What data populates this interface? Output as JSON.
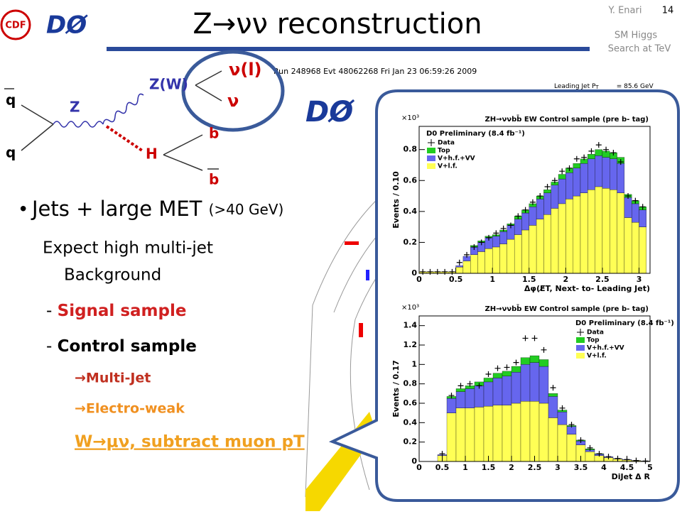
{
  "header": {
    "title": "Z→νν reconstruction",
    "author": "Y. Enari",
    "page": "14",
    "event": "SM Higgs",
    "event_line2": "Search at TeV",
    "logo_cdf": "CDF",
    "logo_d0": "DØ"
  },
  "diagram": {
    "qbar": "q",
    "q": "q",
    "z": "Z",
    "zw": "Z(W)",
    "nul": "ν(l)",
    "nu": "ν",
    "h": "H",
    "b": "b",
    "bbar": "b"
  },
  "event_display": {
    "run": "Run 248968 Evt 48062268 Fri Jan 23 06:59:26 2009",
    "jet": "Leading Jet P",
    "jet_sub": "T",
    "jet_value": "= 85.6 GeV",
    "logo": "DØ"
  },
  "bullets": {
    "main": "Jets + large MET",
    "main_note": "(>40 GeV)",
    "expect": "Expect high multi-jet",
    "expect2": "Background",
    "dash1": "- ",
    "signal": "Signal sample",
    "dash2": "- ",
    "control": "Control sample",
    "multijet": "→Multi-Jet",
    "ew": "→Electro-weak",
    "wmunu": "W→μν, subtract muon pT"
  },
  "chart_data": [
    {
      "type": "histogram",
      "title": "ZH→ννbb̄ EW Control sample (pre b- tag)",
      "subtitle": "D0 Preliminary (8.4 fb⁻¹)",
      "exponent": "×10³",
      "ylabel": "Events / 0.10",
      "xlabel": "Δφ(E̸T, Next- to- Leading Jet)",
      "legend": "upper left",
      "bins": [
        0,
        0.1,
        0.2,
        0.3,
        0.4,
        0.5,
        0.6,
        0.7,
        0.8,
        0.9,
        1.0,
        1.1,
        1.2,
        1.3,
        1.4,
        1.5,
        1.6,
        1.7,
        1.8,
        1.9,
        2.0,
        2.1,
        2.2,
        2.3,
        2.4,
        2.5,
        2.6,
        2.7,
        2.8,
        2.9,
        3.0,
        3.1
      ],
      "series": [
        {
          "name": "V+l.f.",
          "color": "#ffff55",
          "values": [
            0.01,
            0.01,
            0.01,
            0.01,
            0.01,
            0.04,
            0.08,
            0.12,
            0.14,
            0.16,
            0.17,
            0.19,
            0.22,
            0.25,
            0.28,
            0.31,
            0.35,
            0.38,
            0.42,
            0.45,
            0.48,
            0.5,
            0.52,
            0.54,
            0.56,
            0.55,
            0.54,
            0.52,
            0.36,
            0.33,
            0.3
          ]
        },
        {
          "name": "V+h.f.+VV",
          "color": "#6666ee",
          "values": [
            0,
            0,
            0,
            0,
            0,
            0.01,
            0.03,
            0.05,
            0.06,
            0.07,
            0.07,
            0.08,
            0.09,
            0.1,
            0.11,
            0.12,
            0.13,
            0.14,
            0.15,
            0.16,
            0.17,
            0.18,
            0.19,
            0.2,
            0.2,
            0.2,
            0.2,
            0.19,
            0.13,
            0.12,
            0.11
          ]
        },
        {
          "name": "Top",
          "color": "#22cc22",
          "values": [
            0,
            0,
            0,
            0,
            0,
            0,
            0,
            0.01,
            0.01,
            0.01,
            0.01,
            0.01,
            0.01,
            0.02,
            0.02,
            0.02,
            0.02,
            0.02,
            0.02,
            0.03,
            0.03,
            0.03,
            0.03,
            0.03,
            0.04,
            0.04,
            0.04,
            0.04,
            0.02,
            0.02,
            0.02
          ]
        }
      ],
      "data": {
        "name": "Data",
        "values": [
          0.01,
          0.01,
          0.01,
          0.01,
          0.01,
          0.07,
          0.12,
          0.17,
          0.2,
          0.23,
          0.26,
          0.29,
          0.31,
          0.37,
          0.41,
          0.46,
          0.5,
          0.56,
          0.6,
          0.66,
          0.68,
          0.74,
          0.75,
          0.79,
          0.83,
          0.8,
          0.78,
          0.72,
          0.5,
          0.47,
          0.43
        ]
      },
      "xlim": [
        0,
        3.15
      ],
      "xticks": [
        0,
        0.5,
        1,
        1.5,
        2,
        2.5,
        3
      ],
      "ylim": [
        0,
        0.95
      ],
      "yticks": [
        0,
        0.2,
        0.4,
        0.6,
        0.8
      ]
    },
    {
      "type": "histogram",
      "title": "ZH→ννbb̄ EW Control sample (pre b- tag)",
      "subtitle": "D0 Preliminary (8.4 fb⁻¹)",
      "exponent": "×10³",
      "ylabel": "Events / 0.17",
      "xlabel": "DiJet Δ R",
      "legend": "upper right",
      "bins": [
        0.4,
        0.6,
        0.8,
        1.0,
        1.2,
        1.4,
        1.6,
        1.8,
        2.0,
        2.2,
        2.4,
        2.6,
        2.8,
        3.0,
        3.2,
        3.4,
        3.6,
        3.8,
        4.0,
        4.2,
        4.4,
        4.6,
        4.8,
        5.0
      ],
      "series": [
        {
          "name": "V+l.f.",
          "color": "#ffff55",
          "values": [
            0.06,
            0.5,
            0.55,
            0.55,
            0.56,
            0.57,
            0.58,
            0.58,
            0.6,
            0.62,
            0.62,
            0.6,
            0.45,
            0.38,
            0.28,
            0.17,
            0.1,
            0.06,
            0.04,
            0.025,
            0.015,
            0.008,
            0.005
          ]
        },
        {
          "name": "V+h.f.+VV",
          "color": "#6666ee",
          "values": [
            0.01,
            0.15,
            0.17,
            0.2,
            0.22,
            0.25,
            0.28,
            0.3,
            0.32,
            0.38,
            0.4,
            0.38,
            0.22,
            0.13,
            0.08,
            0.04,
            0.02,
            0.015,
            0.01,
            0.005,
            0.005,
            0.002,
            0
          ]
        },
        {
          "name": "Top",
          "color": "#22cc22",
          "values": [
            0,
            0.02,
            0.03,
            0.03,
            0.04,
            0.04,
            0.05,
            0.05,
            0.06,
            0.07,
            0.07,
            0.07,
            0.03,
            0.02,
            0.01,
            0.01,
            0.01,
            0.005,
            0,
            0,
            0,
            0,
            0
          ]
        }
      ],
      "data": {
        "name": "Data",
        "values": [
          0.08,
          0.68,
          0.78,
          0.8,
          0.78,
          0.9,
          0.96,
          0.97,
          1.02,
          1.27,
          1.27,
          1.15,
          0.76,
          0.55,
          0.38,
          0.22,
          0.14,
          0.08,
          0.05,
          0.03,
          0.02,
          0.01,
          0.005
        ]
      },
      "xlim": [
        0,
        5
      ],
      "xticks": [
        0,
        0.5,
        1,
        1.5,
        2,
        2.5,
        3,
        3.5,
        4,
        4.5,
        5
      ],
      "ylim": [
        0,
        1.5
      ],
      "yticks": [
        0,
        0.2,
        0.4,
        0.6,
        0.8,
        1,
        1.2,
        1.4
      ]
    }
  ]
}
